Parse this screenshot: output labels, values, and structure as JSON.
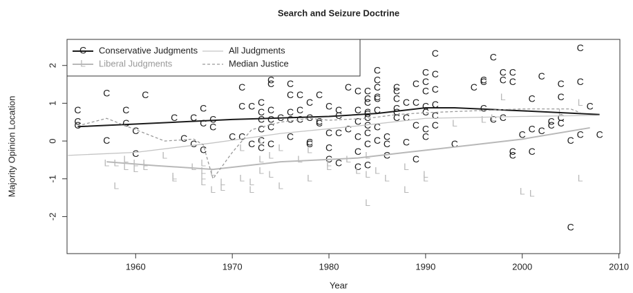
{
  "chart_data": {
    "type": "scatter",
    "title": "Search and Seizure Doctrine",
    "x_label": "Year",
    "y_label": "Majority Opinion Location",
    "xlim": [
      1952.9,
      2010.1
    ],
    "ylim": [
      -2.98,
      2.69
    ],
    "xticks": [
      1960,
      1970,
      1980,
      1990,
      2000,
      2010
    ],
    "yticks": [
      -2,
      -1,
      0,
      1,
      2
    ],
    "legend": "topleft",
    "series": [
      {
        "name": "Conservative Judgments",
        "color": "#1a1a1a",
        "marker": "C",
        "x": [
          1954,
          1954,
          1954,
          1957,
          1957,
          1959,
          1959,
          1960,
          1960,
          1961,
          1964,
          1965,
          1966,
          1966,
          1967,
          1967,
          1967,
          1968,
          1968,
          1970,
          1971,
          1971,
          1971,
          1972,
          1972,
          1973,
          1973,
          1973,
          1973,
          1973,
          1973,
          1974,
          1974,
          1974,
          1974,
          1974,
          1974,
          1975,
          1976,
          1976,
          1976,
          1976,
          1976,
          1977,
          1977,
          1977,
          1978,
          1978,
          1978,
          1978,
          1979,
          1979,
          1979,
          1980,
          1980,
          1980,
          1980,
          1981,
          1981,
          1981,
          1981,
          1982,
          1982,
          1983,
          1983,
          1983,
          1983,
          1983,
          1983,
          1984,
          1984,
          1984,
          1984,
          1984,
          1984,
          1984,
          1984,
          1984,
          1984,
          1985,
          1985,
          1985,
          1985,
          1985,
          1985,
          1985,
          1985,
          1986,
          1986,
          1986,
          1987,
          1987,
          1987,
          1987,
          1987,
          1987,
          1988,
          1988,
          1988,
          1989,
          1989,
          1989,
          1989,
          1990,
          1990,
          1990,
          1990,
          1990,
          1990,
          1990,
          1991,
          1991,
          1991,
          1991,
          1991,
          1991,
          1993,
          1995,
          1996,
          1996,
          1996,
          1997,
          1997,
          1998,
          1998,
          1998,
          1999,
          1999,
          1999,
          1999,
          2000,
          2001,
          2001,
          2001,
          2002,
          2002,
          2003,
          2003,
          2004,
          2004,
          2004,
          2004,
          2005,
          2005,
          2006,
          2006,
          2006,
          2007,
          2008
        ],
        "values": [
          0.8,
          0.5,
          0.4,
          1.25,
          0.0,
          0.8,
          0.45,
          0.25,
          -0.35,
          1.2,
          0.6,
          0.05,
          0.6,
          -0.1,
          0.85,
          0.45,
          -0.25,
          0.55,
          0.35,
          0.1,
          1.4,
          0.9,
          0.1,
          0.9,
          -0.1,
          1.0,
          0.75,
          0.55,
          0.3,
          0.0,
          -0.2,
          1.6,
          1.5,
          0.8,
          0.55,
          0.35,
          -0.1,
          0.6,
          1.5,
          1.2,
          0.75,
          0.55,
          0.1,
          1.2,
          0.8,
          0.55,
          1.0,
          0.6,
          -0.05,
          -0.1,
          1.2,
          0.5,
          0.45,
          0.9,
          0.2,
          -0.2,
          -0.5,
          0.8,
          0.65,
          0.2,
          -0.6,
          1.4,
          0.3,
          1.3,
          0.8,
          0.5,
          0.1,
          -0.3,
          -0.7,
          1.3,
          1.1,
          1.0,
          0.75,
          0.7,
          0.6,
          0.4,
          0.2,
          -0.1,
          -0.65,
          1.85,
          1.6,
          1.4,
          1.15,
          1.1,
          0.8,
          0.35,
          0.0,
          0.1,
          -0.1,
          -0.4,
          1.4,
          1.3,
          1.1,
          0.85,
          0.75,
          0.6,
          1.0,
          0.6,
          -0.05,
          1.5,
          1.0,
          0.4,
          -0.5,
          1.8,
          1.55,
          1.3,
          0.9,
          0.75,
          0.3,
          0.1,
          2.3,
          1.75,
          1.35,
          0.95,
          0.65,
          0.4,
          -0.1,
          1.4,
          1.6,
          1.55,
          0.85,
          2.2,
          0.55,
          1.8,
          1.6,
          0.6,
          1.8,
          1.55,
          -0.3,
          -0.4,
          0.15,
          1.1,
          0.3,
          -0.3,
          1.7,
          0.25,
          0.5,
          0.4,
          1.5,
          1.15,
          0.6,
          0.45,
          -2.3,
          0.0,
          2.45,
          1.55,
          0.15,
          0.9,
          0.15
        ],
        "trend_x": [
          1954,
          1960,
          1970,
          1980,
          1985,
          1990,
          1993,
          2000,
          2008
        ],
        "trend_values": [
          0.38,
          0.45,
          0.57,
          0.65,
          0.73,
          0.88,
          0.88,
          0.8,
          0.7
        ]
      },
      {
        "name": "Liberal Judgments",
        "color": "#b8b8b8",
        "marker": "L",
        "x": [
          1957,
          1958,
          1958,
          1959,
          1959,
          1960,
          1960,
          1961,
          1961,
          1963,
          1964,
          1964,
          1966,
          1967,
          1967,
          1967,
          1967,
          1968,
          1968,
          1969,
          1969,
          1971,
          1971,
          1972,
          1972,
          1973,
          1973,
          1973,
          1974,
          1974,
          1975,
          1975,
          1977,
          1978,
          1978,
          1980,
          1980,
          1982,
          1983,
          1984,
          1984,
          1984,
          1985,
          1986,
          1988,
          1988,
          1990,
          1990,
          1993,
          1996,
          1997,
          1998,
          2000,
          2001,
          2004,
          2006,
          2006
        ],
        "values": [
          -0.6,
          -0.6,
          -1.2,
          -0.5,
          -0.7,
          -0.6,
          -0.75,
          -0.6,
          -0.7,
          -0.4,
          -0.95,
          -1.0,
          -0.7,
          -0.6,
          -0.8,
          -0.95,
          -1.1,
          -0.85,
          -1.3,
          -1.1,
          -1.25,
          -1.0,
          -0.2,
          -1.1,
          -1.3,
          0.0,
          -0.5,
          -0.8,
          -0.4,
          -0.9,
          -0.2,
          -1.2,
          -0.5,
          -0.25,
          -1.0,
          -0.6,
          -0.7,
          -0.5,
          -0.8,
          -0.4,
          -0.9,
          -1.65,
          -0.8,
          -1.0,
          -0.7,
          -1.3,
          -0.9,
          -1.0,
          0.45,
          0.55,
          0.6,
          1.15,
          -1.35,
          -1.4,
          0.75,
          1.0,
          -1.0
        ],
        "trend_x": [
          1957,
          1962,
          1968,
          1975,
          1983,
          1988,
          1995,
          2000,
          2007
        ],
        "trend_values": [
          -0.55,
          -0.65,
          -0.75,
          -0.55,
          -0.45,
          -0.3,
          -0.1,
          0.05,
          0.35
        ]
      },
      {
        "name": "All Judgments",
        "color": "#c4c4c4",
        "trend_x": [
          1953,
          1960,
          1968,
          1975,
          1983,
          1990,
          2000,
          2008
        ],
        "trend_values": [
          -0.38,
          -0.3,
          -0.05,
          0.2,
          0.4,
          0.6,
          0.65,
          0.68
        ]
      },
      {
        "name": "Median Justice",
        "color": "#999999",
        "dashed": true,
        "trend_x": [
          1954,
          1957,
          1960,
          1963,
          1966,
          1967,
          1968,
          1970,
          1972,
          1975,
          1978,
          1980,
          1984,
          1987,
          1990,
          1995,
          2000,
          2005,
          2006
        ],
        "trend_values": [
          0.4,
          0.6,
          0.3,
          0.0,
          0.05,
          -0.1,
          -1.0,
          -0.3,
          0.3,
          0.5,
          0.6,
          0.55,
          0.6,
          0.7,
          0.75,
          0.8,
          0.85,
          0.85,
          0.75
        ]
      }
    ]
  }
}
